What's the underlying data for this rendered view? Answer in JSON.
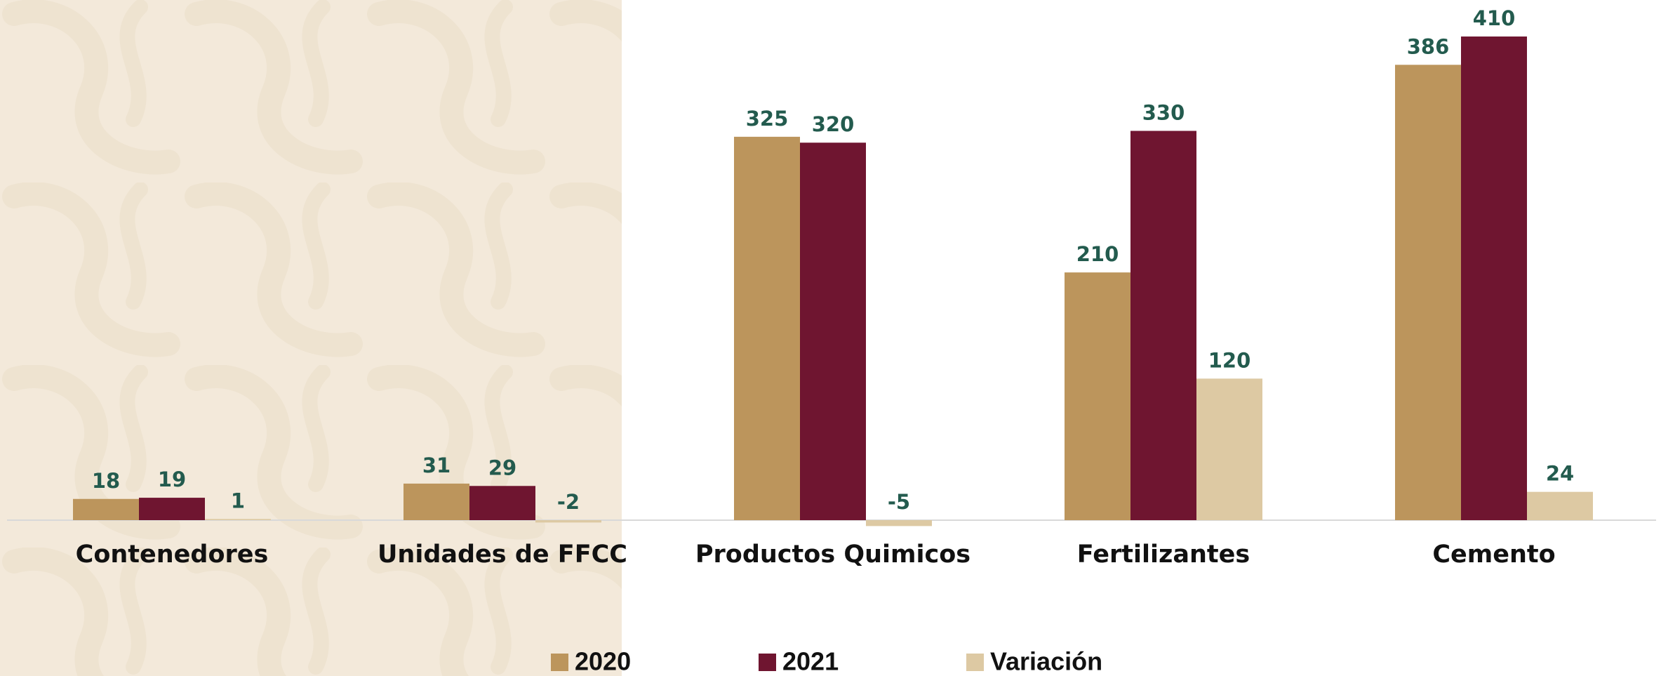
{
  "chart_data": {
    "type": "bar",
    "categories": [
      "Contenedores",
      "Unidades de FFCC",
      "Productos Quimicos",
      "Fertilizantes",
      "Cemento"
    ],
    "series": [
      {
        "name": "2020",
        "color": "#bc955c",
        "values": [
          18,
          31,
          325,
          210,
          386
        ]
      },
      {
        "name": "2021",
        "color": "#6f1530",
        "values": [
          19,
          29,
          320,
          330,
          410
        ]
      },
      {
        "name": "Variación",
        "color": "#ddc9a3",
        "values": [
          1,
          -2,
          -5,
          120,
          24
        ]
      }
    ],
    "legend": "bottom"
  }
}
